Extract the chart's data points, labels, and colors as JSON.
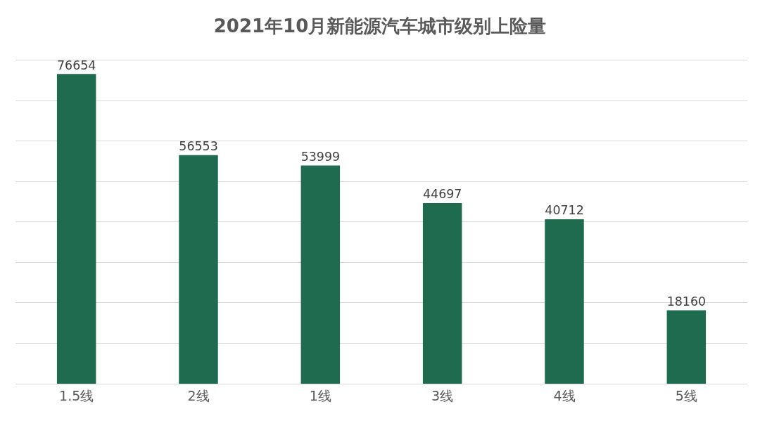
{
  "chart_data": {
    "type": "bar",
    "title": "2021年10月新能源汽车城市级别上险量",
    "categories": [
      "1.5线",
      "2线",
      "1线",
      "3线",
      "4线",
      "5线"
    ],
    "values": [
      76654,
      56553,
      53999,
      44697,
      40712,
      18160
    ],
    "color": "#1e6b4f",
    "grid": "y",
    "data_labels": true,
    "tick_labels": "x"
  }
}
